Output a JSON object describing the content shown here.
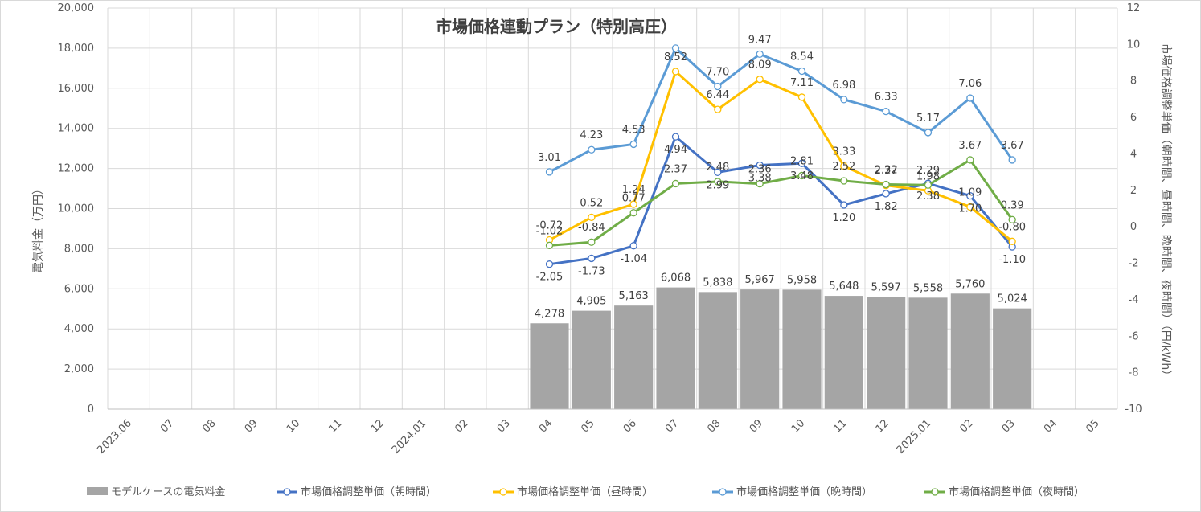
{
  "chart_data": {
    "type": "bar",
    "title": "市場価格連動プラン（特別高圧）",
    "ylabel_left": "電気料金（万円）",
    "ylabel_right": "市場価格調整単価（朝時間、昼時間、晩時間、夜時間）（円/kWh）",
    "ylim_left": [
      0,
      20000
    ],
    "ylim_right": [
      -10,
      12
    ],
    "yticks_left": [
      "0",
      "2,000",
      "4,000",
      "6,000",
      "8,000",
      "10,000",
      "12,000",
      "14,000",
      "16,000",
      "18,000",
      "20,000"
    ],
    "yticks_right": [
      "-10",
      "-8",
      "-6",
      "-4",
      "-2",
      "0",
      "2",
      "4",
      "6",
      "8",
      "10",
      "12"
    ],
    "categories": [
      "2023.06",
      "07",
      "08",
      "09",
      "10",
      "11",
      "12",
      "2024.01",
      "02",
      "03",
      "04",
      "05",
      "06",
      "07",
      "08",
      "09",
      "10",
      "11",
      "12",
      "2025.01",
      "02",
      "03",
      "04",
      "05"
    ],
    "legend_position": "bottom",
    "grid": true,
    "bar_series": {
      "name": "モデルケースの電気料金",
      "color": "#a5a5a5",
      "values": [
        null,
        null,
        null,
        null,
        null,
        null,
        null,
        null,
        null,
        null,
        4278,
        4905,
        5163,
        6068,
        5838,
        5967,
        5958,
        5648,
        5597,
        5558,
        5760,
        5024,
        null,
        null
      ],
      "labels": [
        "",
        "",
        "",
        "",
        "",
        "",
        "",
        "",
        "",
        "",
        "4,278",
        "4,905",
        "5,163",
        "6,068",
        "5,838",
        "5,967",
        "5,958",
        "5,648",
        "5,597",
        "5,558",
        "5,760",
        "5,024",
        "",
        ""
      ]
    },
    "series": [
      {
        "name": "市場価格調整単価（朝時間）",
        "color": "#4472c4",
        "values": [
          null,
          null,
          null,
          null,
          null,
          null,
          null,
          null,
          null,
          null,
          -2.05,
          -1.73,
          -1.04,
          4.94,
          2.99,
          3.38,
          3.48,
          1.2,
          1.82,
          2.38,
          1.7,
          -1.1,
          null,
          null
        ],
        "labels": [
          "",
          "",
          "",
          "",
          "",
          "",
          "",
          "",
          "",
          "",
          "-2.05",
          "-1.73",
          "-1.04",
          "4.94",
          "2.99",
          "3.38",
          "3.48",
          "1.20",
          "1.82",
          "2.38",
          "1.70",
          "-1.10",
          "",
          ""
        ]
      },
      {
        "name": "市場価格調整単価（昼時間）",
        "color": "#ffc000",
        "values": [
          null,
          null,
          null,
          null,
          null,
          null,
          null,
          null,
          null,
          null,
          -0.72,
          0.52,
          1.24,
          8.52,
          6.44,
          8.09,
          7.11,
          3.33,
          2.27,
          1.98,
          1.09,
          -0.8,
          null,
          null
        ],
        "labels": [
          "",
          "",
          "",
          "",
          "",
          "",
          "",
          "",
          "",
          "",
          "-0.72",
          "0.52",
          "1.24",
          "8.52",
          "6.44",
          "8.09",
          "7.11",
          "3.33",
          "2.27",
          "1.98",
          "1.09",
          "-0.80",
          "",
          ""
        ]
      },
      {
        "name": "市場価格調整単価（晩時間）",
        "color": "#5b9bd5",
        "values": [
          null,
          null,
          null,
          null,
          null,
          null,
          null,
          null,
          null,
          null,
          3.01,
          4.23,
          4.53,
          9.8,
          7.7,
          9.47,
          8.54,
          6.98,
          6.33,
          5.17,
          7.06,
          3.67,
          null,
          null
        ],
        "labels": [
          "",
          "",
          "",
          "",
          "",
          "",
          "",
          "",
          "",
          "",
          "3.01",
          "4.23",
          "4.53",
          "",
          "7.70",
          "9.47",
          "8.54",
          "6.98",
          "6.33",
          "5.17",
          "7.06",
          "3.67",
          "",
          ""
        ]
      },
      {
        "name": "市場価格調整単価（夜時間）",
        "color": "#70ad47",
        "values": [
          null,
          null,
          null,
          null,
          null,
          null,
          null,
          null,
          null,
          null,
          -1.02,
          -0.84,
          0.77,
          2.37,
          2.48,
          2.36,
          2.81,
          2.52,
          2.32,
          2.29,
          3.67,
          0.39,
          null,
          null
        ],
        "labels": [
          "",
          "",
          "",
          "",
          "",
          "",
          "",
          "",
          "",
          "",
          "-1.02",
          "-0.84",
          "0.77",
          "2.37",
          "2.48",
          "2.36",
          "2.81",
          "2.52",
          "2.32",
          "2.29",
          "3.67",
          "0.39",
          "",
          ""
        ]
      }
    ]
  }
}
